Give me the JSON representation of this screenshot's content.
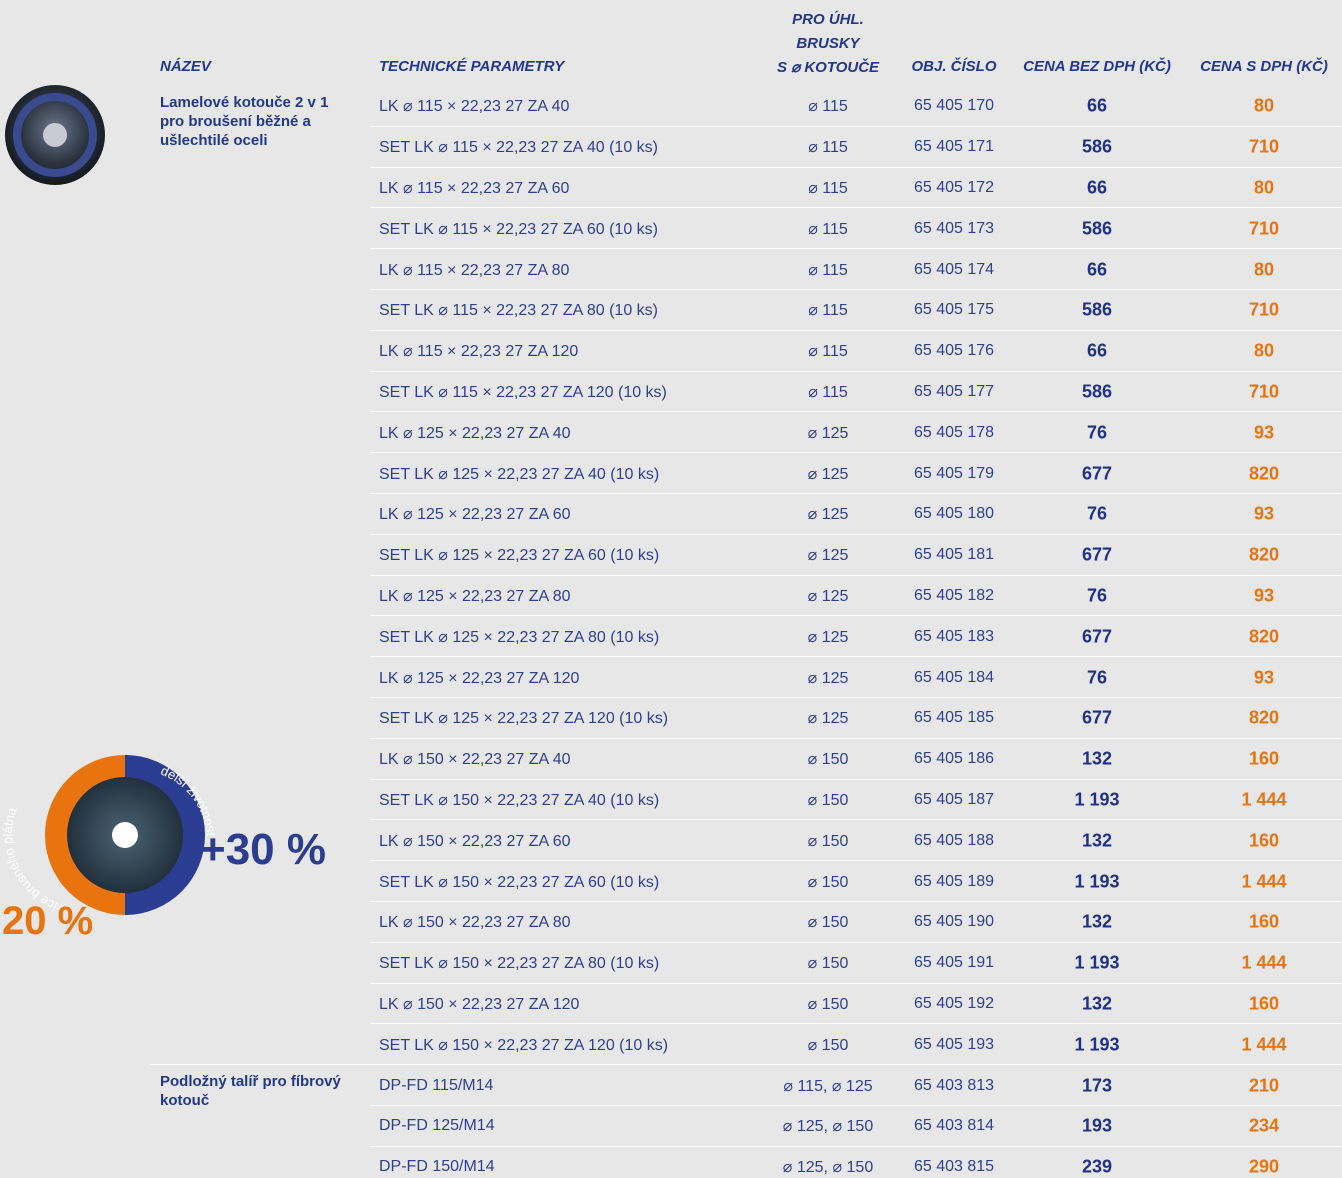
{
  "header": {
    "columns": [
      "NÁZEV",
      "TECHNICKÉ PARAMETRY",
      [
        "PRO ÚHL.",
        "BRUSKY",
        "S ⌀ KOTOUČE"
      ],
      "OBJ. ČÍSLO",
      "CENA BEZ DPH (KČ)",
      "CENA S DPH (KČ)"
    ]
  },
  "groups": [
    {
      "name": "Lamelové kotouče 2 v 1 pro broušení běžné a ušlechtilé oceli",
      "rows": [
        [
          "LK ⌀ 115 × 22,23  27 ZA 40",
          "⌀ 115",
          "65 405 170",
          "66",
          "80"
        ],
        [
          "SET LK ⌀ 115 × 22,23  27 ZA 40 (10 ks)",
          "⌀ 115",
          "65 405 171",
          "586",
          "710"
        ],
        [
          "LK ⌀ 115 × 22,23  27 ZA 60",
          "⌀ 115",
          "65 405 172",
          "66",
          "80"
        ],
        [
          "SET LK ⌀ 115 × 22,23  27 ZA 60 (10 ks)",
          "⌀ 115",
          "65 405 173",
          "586",
          "710"
        ],
        [
          "LK ⌀ 115 × 22,23  27 ZA 80",
          "⌀ 115",
          "65 405 174",
          "66",
          "80"
        ],
        [
          "SET LK ⌀ 115 × 22,23  27 ZA 80 (10 ks)",
          "⌀ 115",
          "65 405 175",
          "586",
          "710"
        ],
        [
          "LK ⌀ 115 × 22,23  27 ZA 120",
          "⌀ 115",
          "65 405 176",
          "66",
          "80"
        ],
        [
          "SET LK ⌀ 115 × 22,23  27 ZA 120 (10 ks)",
          "⌀ 115",
          "65 405 177",
          "586",
          "710"
        ],
        [
          "LK ⌀ 125 × 22,23  27 ZA 40",
          "⌀ 125",
          "65 405 178",
          "76",
          "93"
        ],
        [
          "SET LK ⌀ 125 × 22,23  27 ZA 40 (10 ks)",
          "⌀ 125",
          "65 405 179",
          "677",
          "820"
        ],
        [
          "LK ⌀ 125 × 22,23  27 ZA 60",
          "⌀ 125",
          "65 405 180",
          "76",
          "93"
        ],
        [
          "SET LK ⌀ 125 × 22,23  27 ZA 60 (10 ks)",
          "⌀ 125",
          "65 405 181",
          "677",
          "820"
        ],
        [
          "LK ⌀ 125 × 22,23  27 ZA 80",
          "⌀ 125",
          "65 405 182",
          "76",
          "93"
        ],
        [
          "SET LK ⌀ 125 × 22,23  27 ZA 80 (10 ks)",
          "⌀ 125",
          "65 405 183",
          "677",
          "820"
        ],
        [
          "LK ⌀ 125 × 22,23  27 ZA 120",
          "⌀ 125",
          "65 405 184",
          "76",
          "93"
        ],
        [
          "SET LK ⌀ 125 × 22,23  27 ZA 120 (10 ks)",
          "⌀ 125",
          "65 405 185",
          "677",
          "820"
        ],
        [
          "LK ⌀ 150 × 22,23  27 ZA 40",
          "⌀ 150",
          "65 405 186",
          "132",
          "160"
        ],
        [
          "SET LK ⌀ 150 × 22,23  27 ZA 40 (10 ks)",
          "⌀ 150",
          "65 405 187",
          "1 193",
          "1 444"
        ],
        [
          "LK ⌀ 150 × 22,23  27 ZA 60",
          "⌀ 150",
          "65 405 188",
          "132",
          "160"
        ],
        [
          "SET LK ⌀ 150 × 22,23  27 ZA 60 (10 ks)",
          "⌀ 150",
          "65 405 189",
          "1 193",
          "1 444"
        ],
        [
          "LK ⌀ 150 × 22,23  27 ZA 80",
          "⌀ 150",
          "65 405 190",
          "132",
          "160"
        ],
        [
          "SET LK ⌀ 150 × 22,23  27 ZA 80 (10 ks)",
          "⌀ 150",
          "65 405 191",
          "1 193",
          "1 444"
        ],
        [
          "LK ⌀ 150 × 22,23  27 ZA 120",
          "⌀ 150",
          "65 405 192",
          "132",
          "160"
        ],
        [
          "SET LK ⌀ 150 × 22,23  27 ZA 120 (10 ks)",
          "⌀ 150",
          "65 405 193",
          "1 193",
          "1 444"
        ]
      ]
    },
    {
      "name": "Podložný talíř pro fíbrový kotouč",
      "rows": [
        [
          "DP-FD 115/M14",
          "⌀ 115, ⌀ 125",
          "65 403 813",
          "173",
          "210"
        ],
        [
          "DP-FD 125/M14",
          "⌀ 125, ⌀ 150",
          "65 403 814",
          "193",
          "234"
        ],
        [
          "DP-FD 150/M14",
          "⌀ 125, ⌀ 150",
          "65 403 815",
          "239",
          "290"
        ]
      ]
    }
  ],
  "badge": {
    "left_arc": "více brusného plátna",
    "right_arc": "delší životnost",
    "right_value": "+30 %",
    "left_value": "20 %"
  }
}
